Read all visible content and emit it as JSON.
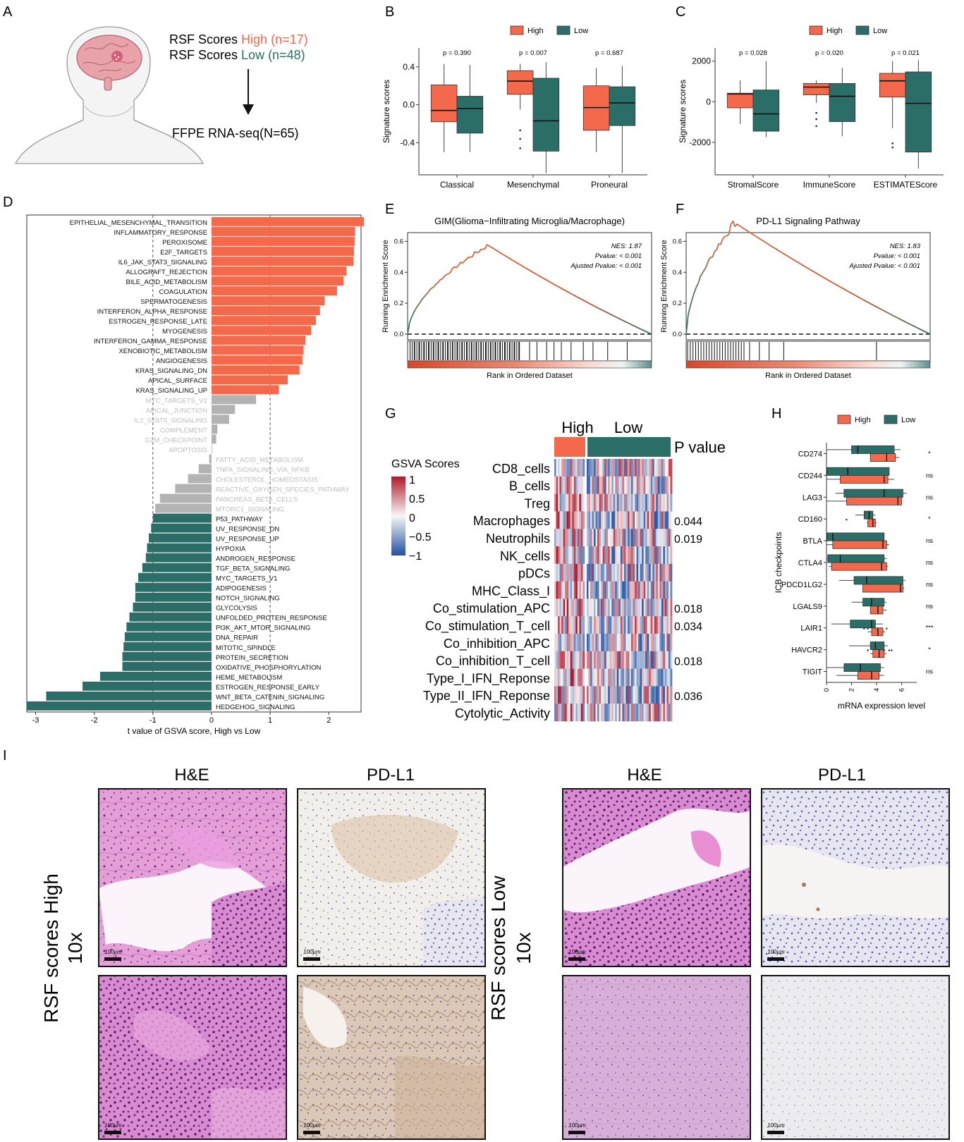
{
  "colors": {
    "high": "#f4684b",
    "low": "#2b6e67",
    "grey": "#b3b3b3",
    "grey_text": "#bdbdbd",
    "heat_high": "#b2182b",
    "heat_low": "#2151a1"
  },
  "panels": {
    "A": {
      "letter": "A",
      "line1_prefix": "RSF Scores ",
      "line1_group": "High",
      "line1_n": " (n=17)",
      "line2_prefix": "RSF Scores ",
      "line2_group": "Low",
      "line2_n": "  (n=48)",
      "bottom": "FFPE RNA-seq(N=65)"
    },
    "B": {
      "letter": "B",
      "legend_high": "High",
      "legend_low": "Low",
      "ylabel": "Signature scores",
      "yticks": [
        0.4,
        0.0,
        -0.4
      ],
      "ytick_labels": [
        "0.4",
        "0.0",
        "-0.4"
      ],
      "ylim": [
        -0.74,
        0.6
      ],
      "groups": [
        {
          "label": "Classical",
          "p": "p = 0.390",
          "high": {
            "q1": -0.18,
            "med": -0.06,
            "q3": 0.21,
            "wlo": -0.5,
            "whi": 0.43,
            "out": []
          },
          "low": {
            "q1": -0.3,
            "med": -0.04,
            "q3": 0.09,
            "wlo": -0.5,
            "whi": 0.42,
            "out": []
          }
        },
        {
          "label": "Mesenchymal",
          "p": "p = 0.007",
          "high": {
            "q1": 0.11,
            "med": 0.25,
            "q3": 0.36,
            "wlo": -0.05,
            "whi": 0.43,
            "out": [
              -0.27,
              -0.36,
              -0.46
            ]
          },
          "low": {
            "q1": -0.49,
            "med": -0.17,
            "q3": 0.28,
            "wlo": -0.72,
            "whi": 0.45,
            "out": []
          }
        },
        {
          "label": "Proneural",
          "p": "p = 0.687",
          "high": {
            "q1": -0.27,
            "med": -0.03,
            "q3": 0.2,
            "wlo": -0.5,
            "whi": 0.39,
            "out": []
          },
          "low": {
            "q1": -0.22,
            "med": 0.02,
            "q3": 0.19,
            "wlo": -0.72,
            "whi": 0.41,
            "out": []
          }
        }
      ]
    },
    "C": {
      "letter": "C",
      "legend_high": "High",
      "legend_low": "Low",
      "ylabel": "Signature scores",
      "yticks": [
        2000,
        0,
        -2000
      ],
      "ytick_labels": [
        "2000",
        "0",
        "-2000"
      ],
      "ylim": [
        -3600,
        2650
      ],
      "groups": [
        {
          "label": "StromalScore",
          "p": "p = 0.028",
          "high": {
            "q1": -300,
            "med": 380,
            "q3": 420,
            "wlo": -1100,
            "whi": 1050,
            "out": []
          },
          "low": {
            "q1": -1450,
            "med": -600,
            "q3": 580,
            "wlo": -1750,
            "whi": 2000,
            "out": []
          }
        },
        {
          "label": "ImmuneScore",
          "p": "p = 0.020",
          "high": {
            "q1": 340,
            "med": 720,
            "q3": 900,
            "wlo": -50,
            "whi": 1050,
            "out": [
              -550,
              -860,
              -1200
            ]
          },
          "low": {
            "q1": -980,
            "med": 270,
            "q3": 900,
            "wlo": -1700,
            "whi": 1670,
            "out": []
          }
        },
        {
          "label": "ESTIMATEScore",
          "p": "p = 0.021",
          "high": {
            "q1": 230,
            "med": 1030,
            "q3": 1400,
            "wlo": -1300,
            "whi": 2000,
            "out": [
              -2050,
              -2250
            ]
          },
          "low": {
            "q1": -2480,
            "med": -80,
            "q3": 1470,
            "wlo": -3300,
            "whi": 2050,
            "out": []
          }
        }
      ]
    },
    "D": {
      "letter": "D",
      "xlabel": "t value of GSVA score, High vs Low",
      "xticks": [
        -3,
        -2,
        -1,
        0,
        1,
        2
      ],
      "xtick_labels": [
        "-3",
        "-2",
        "-1",
        "0",
        "1",
        "2"
      ],
      "xlim": [
        -3.15,
        2.55
      ],
      "bars": [
        {
          "name": "EPITHELIAL_MESENCHYMAL_TRANSITION",
          "t": 2.6
        },
        {
          "name": "INFLAMMATORY_RESPONSE",
          "t": 2.45
        },
        {
          "name": "PEROXISOME",
          "t": 2.44
        },
        {
          "name": "E2F_TARGETS",
          "t": 2.43
        },
        {
          "name": "IL6_JAK_STAT3_SIGNALING",
          "t": 2.42
        },
        {
          "name": "ALLOGRAFT_REJECTION",
          "t": 2.3
        },
        {
          "name": "BILE_ACID_METABOLISM",
          "t": 2.25
        },
        {
          "name": "COAGULATION",
          "t": 2.14
        },
        {
          "name": "SPERMATOGENESIS",
          "t": 1.93
        },
        {
          "name": "INTERFERON_ALPHA_RESPONSE",
          "t": 1.85
        },
        {
          "name": "ESTROGEN_RESPONSE_LATE",
          "t": 1.78
        },
        {
          "name": "MYOGENESIS",
          "t": 1.7
        },
        {
          "name": "INTERFERON_GAMMA_RESPONSE",
          "t": 1.6
        },
        {
          "name": "XENOBIOTIC_METABOLISM",
          "t": 1.57
        },
        {
          "name": "ANGIOGENESIS",
          "t": 1.55
        },
        {
          "name": "KRAS_SIGNALING_DN",
          "t": 1.5
        },
        {
          "name": "APICAL_SURFACE",
          "t": 1.3
        },
        {
          "name": "KRAS_SIGNALING_UP",
          "t": 1.15
        },
        {
          "name": "MYC_TARGETS_V2",
          "t": 0.76
        },
        {
          "name": "APICAL_JUNCTION",
          "t": 0.4
        },
        {
          "name": "IL2_STAT5_SIGNALING",
          "t": 0.3
        },
        {
          "name": "COMPLEMENT",
          "t": 0.1
        },
        {
          "name": "G2M_CHECKPOINT",
          "t": 0.08
        },
        {
          "name": "APOPTOSIS",
          "t": 0.01
        },
        {
          "name": "FATTY_ACID_METABOLISM",
          "t": -0.04
        },
        {
          "name": "TNFA_SIGNALING_VIA_NFKB",
          "t": -0.22
        },
        {
          "name": "CHOLESTEROL_HOMEOSTASIS",
          "t": -0.4
        },
        {
          "name": "REACTIVE_OXYGEN_SPECIES_PATHWAY",
          "t": -0.62
        },
        {
          "name": "PANCREAS_BETA_CELLS",
          "t": -0.88
        },
        {
          "name": "MTORC1_SIGNALING",
          "t": -0.96
        },
        {
          "name": "P53_PATHWAY",
          "t": -1.0
        },
        {
          "name": "UV_RESPONSE_DN",
          "t": -1.03
        },
        {
          "name": "UV_RESPONSE_UP",
          "t": -1.07
        },
        {
          "name": "HYPOXIA",
          "t": -1.1
        },
        {
          "name": "ANDROGEN_RESPONSE",
          "t": -1.12
        },
        {
          "name": "TGF_BETA_SIGNALING",
          "t": -1.18
        },
        {
          "name": "MYC_TARGETS_V1",
          "t": -1.25
        },
        {
          "name": "ADIPOGENESIS",
          "t": -1.3
        },
        {
          "name": "NOTCH_SIGNALING",
          "t": -1.3
        },
        {
          "name": "GLYCOLYSIS",
          "t": -1.34
        },
        {
          "name": "UNFOLDED_PROTEIN_RESPONSE",
          "t": -1.4
        },
        {
          "name": "PI3K_AKT_MTOR_SIGNALING",
          "t": -1.45
        },
        {
          "name": "DNA_REPAIR",
          "t": -1.48
        },
        {
          "name": "MITOTIC_SPINDLE",
          "t": -1.5
        },
        {
          "name": "PROTEIN_SECRETION",
          "t": -1.52
        },
        {
          "name": "OXIDATIVE_PHOSPHORYLATION",
          "t": -1.52
        },
        {
          "name": "HEME_METABOLISM",
          "t": -1.9
        },
        {
          "name": "ESTROGEN_RESPONSE_EARLY",
          "t": -2.2
        },
        {
          "name": "WNT_BETA_CATENIN_SIGNALING",
          "t": -2.82
        },
        {
          "name": "HEDGEHOG_SIGNALING",
          "t": -3.15
        }
      ]
    },
    "E": {
      "letter": "E",
      "title": "GIM(Glioma−Infiltrating Microglia/Macrophage)",
      "ylabel": "Running Enrichment Score",
      "xlabel": "Rank in Ordered Dataset",
      "nes": "NES: 1.87",
      "pvalue": "Pvalue: < 0.001",
      "adj": "Ajusted Pvalue: < 0.001",
      "yticks": [
        "0.6",
        "0.4",
        "0.2",
        "0.0"
      ]
    },
    "F": {
      "letter": "F",
      "title": "PD-L1 Signaling Pathway",
      "ylabel": "Running Enrichment Score",
      "xlabel": "Rank in Ordered Dataset",
      "nes": "NES: 1.83",
      "pvalue": "Pvalue: < 0.001",
      "adj": "Ajusted Pvalue: < 0.001",
      "yticks": [
        "0.6",
        "0.4",
        "0.2",
        "0.0"
      ]
    },
    "G": {
      "letter": "G",
      "legend_title": "GSVA Scores",
      "legend_ticks": [
        "1",
        "0.5",
        "0",
        "−0.5",
        "−1"
      ],
      "high": "High",
      "low": "Low",
      "pvalue_header": "P value",
      "rows": [
        {
          "name": "CD8_cells",
          "p": ""
        },
        {
          "name": "B_cells",
          "p": ""
        },
        {
          "name": "Treg",
          "p": ""
        },
        {
          "name": "Macrophages",
          "p": "0.044"
        },
        {
          "name": "Neutrophils",
          "p": "0.019"
        },
        {
          "name": "NK_cells",
          "p": ""
        },
        {
          "name": "pDCs",
          "p": ""
        },
        {
          "name": "MHC_Class_I",
          "p": ""
        },
        {
          "name": "Co_stimulation_APC",
          "p": "0.018"
        },
        {
          "name": "Co_stimulation_T_cell",
          "p": "0.034"
        },
        {
          "name": "Co_inhibition_APC",
          "p": ""
        },
        {
          "name": "Co_inhibition_T_cell",
          "p": "0.018"
        },
        {
          "name": "Type_I_IFN_Reponse",
          "p": ""
        },
        {
          "name": "Type_II_IFN_Reponse",
          "p": "0.036"
        },
        {
          "name": "Cytolytic_Activity",
          "p": ""
        }
      ]
    },
    "H": {
      "letter": "H",
      "legend_high": "High",
      "legend_low": "Low",
      "ylabel": "ICB checkpoints",
      "xlabel": "mRNA expression level",
      "xticks": [
        0,
        2,
        4,
        6
      ],
      "xtick_labels": [
        "0",
        "2",
        "4",
        "6"
      ],
      "xlim": [
        0,
        7.2
      ],
      "genes": [
        {
          "name": "CD274",
          "sig": "*",
          "low": {
            "q1": 2.0,
            "med": 2.5,
            "q3": 5.4,
            "wlo": 0.0,
            "whi": 5.9
          },
          "high": {
            "q1": 3.5,
            "med": 4.8,
            "q3": 5.5,
            "wlo": 3.5,
            "whi": 5.8
          }
        },
        {
          "name": "CD244",
          "sig": "ns",
          "low": {
            "q1": 0.05,
            "med": 1.7,
            "q3": 5.0,
            "wlo": 0.0,
            "whi": 5.0
          },
          "high": {
            "q1": 1.1,
            "med": 4.6,
            "q3": 4.9,
            "wlo": 0.0,
            "whi": 5.4
          }
        },
        {
          "name": "LAG3",
          "sig": "ns",
          "low": {
            "q1": 1.4,
            "med": 4.6,
            "q3": 6.1,
            "wlo": 0.7,
            "whi": 6.4
          },
          "high": {
            "q1": 1.6,
            "med": 5.7,
            "q3": 6.0,
            "wlo": 0.0,
            "whi": 6.0
          }
        },
        {
          "name": "CD160",
          "sig": "*",
          "low": {
            "q1": 3.0,
            "med": 3.4,
            "q3": 3.7,
            "wlo": 2.3,
            "whi": 3.9
          },
          "high": {
            "q1": 3.3,
            "med": 3.7,
            "q3": 3.9,
            "wlo": 3.2,
            "whi": 4.0
          },
          "out": [
            1.6
          ]
        },
        {
          "name": "BTLA",
          "sig": "ns",
          "low": {
            "q1": 0.05,
            "med": 0.5,
            "q3": 4.6,
            "wlo": 0.0,
            "whi": 4.6
          },
          "high": {
            "q1": 0.5,
            "med": 4.5,
            "q3": 4.8,
            "wlo": 0.0,
            "whi": 5.0
          }
        },
        {
          "name": "CTLA4",
          "sig": "ns",
          "low": {
            "q1": 0.1,
            "med": 1.1,
            "q3": 4.6,
            "wlo": 0.0,
            "whi": 4.8
          },
          "high": {
            "q1": 0.4,
            "med": 4.4,
            "q3": 4.8,
            "wlo": 0.2,
            "whi": 4.9
          }
        },
        {
          "name": "PDCD1LG2",
          "sig": "ns",
          "low": {
            "q1": 2.2,
            "med": 3.2,
            "q3": 6.1,
            "wlo": 1.0,
            "whi": 6.3
          },
          "high": {
            "q1": 2.9,
            "med": 5.9,
            "q3": 6.1,
            "wlo": 2.9,
            "whi": 6.2
          }
        },
        {
          "name": "LGALS9",
          "sig": "ns",
          "low": {
            "q1": 2.9,
            "med": 3.6,
            "q3": 4.6,
            "wlo": 2.0,
            "whi": 4.8
          },
          "high": {
            "q1": 3.5,
            "med": 4.1,
            "q3": 4.5,
            "wlo": 3.5,
            "whi": 4.8
          }
        },
        {
          "name": "LAIR1",
          "sig": "***",
          "low": {
            "q1": 1.9,
            "med": 3.6,
            "q3": 3.9,
            "wlo": 0.4,
            "whi": 4.5
          },
          "high": {
            "q1": 3.6,
            "med": 4.1,
            "q3": 4.5,
            "wlo": 3.3,
            "whi": 4.7
          },
          "out": [
            3.0,
            3.3,
            4.8
          ]
        },
        {
          "name": "HAVCR2",
          "sig": "*",
          "low": {
            "q1": 3.5,
            "med": 3.9,
            "q3": 4.6,
            "wlo": 1.8,
            "whi": 4.9
          },
          "high": {
            "q1": 3.7,
            "med": 4.2,
            "q3": 4.6,
            "wlo": 3.5,
            "whi": 4.8
          },
          "out": [
            3.3,
            4.6,
            5.0,
            5.2
          ]
        },
        {
          "name": "TIGIT",
          "sig": "ns",
          "low": {
            "q1": 1.4,
            "med": 2.7,
            "q3": 4.3,
            "wlo": 0.0,
            "whi": 4.6
          },
          "high": {
            "q1": 2.5,
            "med": 3.6,
            "q3": 4.2,
            "wlo": 0.8,
            "whi": 4.6
          }
        }
      ]
    },
    "I": {
      "letter": "I",
      "col_he": "H&E",
      "col_pdl1": "PD-L1",
      "row_high_1": "RSF scores High",
      "row_high_2": "10x",
      "row_low_1": "RSF scores Low",
      "row_low_2": "10x",
      "scale": "100µm"
    }
  }
}
